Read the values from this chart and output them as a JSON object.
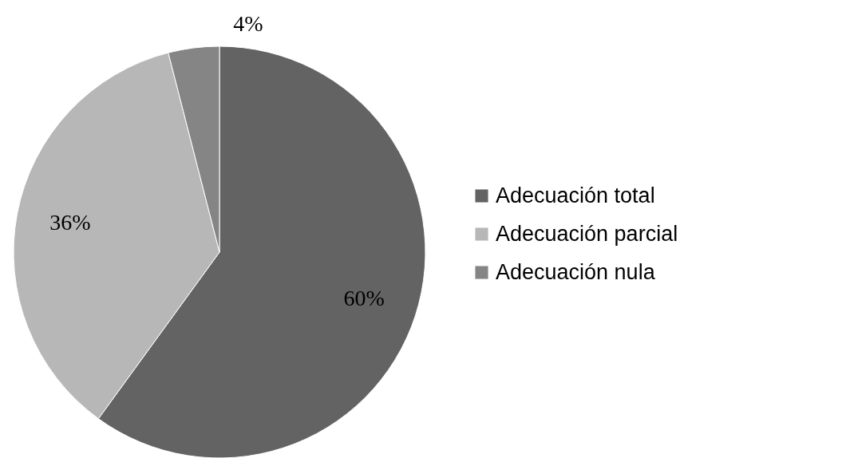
{
  "chart_data": {
    "type": "pie",
    "categories": [
      "Adecuación total",
      "Adecuación parcial",
      "Adecuación nula"
    ],
    "values": [
      60,
      36,
      4
    ],
    "colors": [
      "#636363",
      "#b7b7b7",
      "#858585"
    ],
    "value_labels": [
      "60%",
      "36%",
      "4%"
    ],
    "legend": "right"
  }
}
